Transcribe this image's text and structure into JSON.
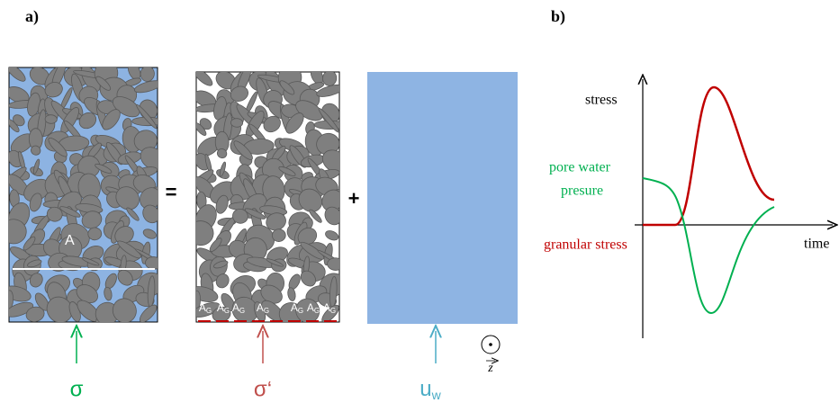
{
  "panel_a": {
    "label": "a)",
    "equals": "=",
    "plus": "+",
    "grain_label": "A",
    "contact_labels": [
      {
        "base": "A",
        "sub": "G"
      },
      {
        "base": "A",
        "sub": "G"
      },
      {
        "base": "A",
        "sub": "G"
      },
      {
        "base": "A",
        "sub": "G"
      },
      {
        "base": "A",
        "sub": "G"
      },
      {
        "base": "A",
        "sub": "G"
      },
      {
        "base": "A",
        "sub": "G"
      }
    ],
    "total_stress": "σ",
    "effective_stress": "σ‘",
    "pore_pressure": {
      "base": "u",
      "sub": "w"
    },
    "z_axis": "z"
  },
  "panel_b": {
    "label": "b)",
    "y_axis": "stress",
    "x_axis": "time",
    "pore_water": [
      "pore water",
      "presure"
    ],
    "granular": "granular stress"
  }
}
